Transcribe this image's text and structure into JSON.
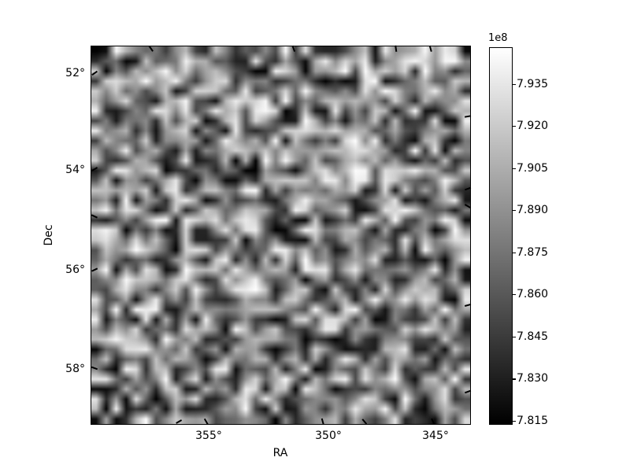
{
  "figure": {
    "xlabel": "RA",
    "ylabel": "Dec",
    "x_tick_labels": [
      "355°",
      "350°",
      "345°"
    ],
    "y_tick_labels": [
      "52°",
      "54°",
      "56°",
      "58°"
    ],
    "colorbar": {
      "offset_label": "1e8",
      "tick_labels": [
        "7.935",
        "7.920",
        "7.905",
        "7.890",
        "7.875",
        "7.860",
        "7.845",
        "7.830",
        "7.815"
      ]
    }
  },
  "chart_data": {
    "type": "heatmap",
    "title": "",
    "xlabel": "RA",
    "ylabel": "Dec",
    "x_tick_values_deg": [
      355,
      350,
      345
    ],
    "y_tick_values_deg": [
      52,
      54,
      56,
      58
    ],
    "x_range_deg": [
      360.1,
      343.4
    ],
    "y_range_deg": [
      51.4,
      59.1
    ],
    "x_axis_direction": "decreasing-right",
    "y_axis_direction": "increasing-down",
    "colormap": "gray",
    "value_offset_scale": "1e8",
    "colorbar_tick_values": [
      7.935,
      7.92,
      7.905,
      7.89,
      7.875,
      7.86,
      7.845,
      7.83,
      7.815
    ],
    "value_min": 7.814,
    "value_max": 7.948,
    "grid": {
      "rows": 38,
      "cols": 38,
      "seed": 7,
      "distribution": "uniform-random-noise"
    },
    "legend": "none",
    "gridlines": false
  }
}
